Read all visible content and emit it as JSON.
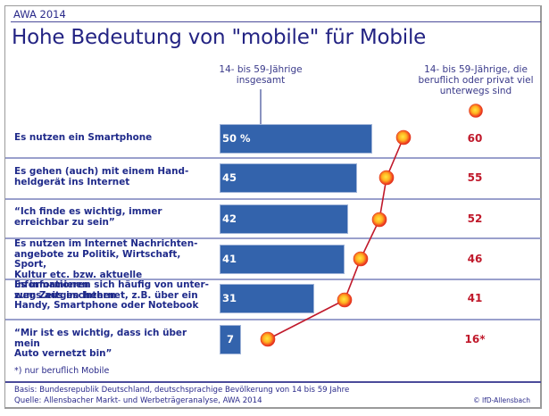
{
  "header": {
    "survey_label": "AWA 2014",
    "title": "Hohe Bedeutung von \"mobile\" für Mobile"
  },
  "chart_data": {
    "type": "bar",
    "title": "Hohe Bedeutung von \"mobile\" für Mobile",
    "unit": "%",
    "categories": [
      "Es nutzen ein Smartphone",
      "Es gehen (auch) mit einem Handheldgerät ins Internet",
      "\"Ich finde es wichtig, immer erreichbar zu sein\"",
      "Es nutzen im Internet Nachrichtenangebote zu Politik, Wirtschaft, Sport, Kultur etc. bzw. aktuelle Informationen zum Zeitgeschehen",
      "Es informieren sich häufig von unterwegs aus im Internet, z.B. über ein Handy, Smartphone oder Notebook",
      "\"Mir ist es wichtig, dass ich über mein Auto vernetzt bin\""
    ],
    "category_lines": [
      [
        "Es nutzen ein Smartphone"
      ],
      [
        "Es gehen (auch) mit einem Hand-",
        "heldgerät ins Internet"
      ],
      [
        "“Ich finde es wichtig, immer",
        "erreichbar zu sein”"
      ],
      [
        "Es nutzen im Internet Nachrichten-",
        "angebote zu Politik, Wirtschaft, Sport,",
        "Kultur etc. bzw. aktuelle Informationen",
        "zum Zeitgeschehen"
      ],
      [
        "Es informieren sich häufig von unter-",
        "wegs aus im Internet, z.B. über ein",
        "Handy, Smartphone oder Notebook"
      ],
      [
        "“Mir ist es wichtig, dass ich über mein",
        "Auto vernetzt bin”"
      ]
    ],
    "series": [
      {
        "name": "14- bis 59-Jährige insgesamt",
        "mark": "bar",
        "color": "#3363ac",
        "values": [
          50,
          45,
          42,
          41,
          31,
          7
        ],
        "labels": [
          "50 %",
          "45",
          "42",
          "41",
          "31",
          "7"
        ]
      },
      {
        "name": "14- bis 59-Jährige, die beruflich oder privat viel unterwegs sind",
        "mark": "line-dots",
        "color": "#c0192b",
        "values": [
          60,
          55,
          52,
          46,
          41,
          16
        ],
        "labels": [
          "60",
          "55",
          "52",
          "46",
          "41",
          "16*"
        ]
      }
    ],
    "legend": {
      "left_header_lines": [
        "14- bis 59-Jährige",
        "insgesamt"
      ],
      "right_header_lines": [
        "14- bis 59-Jährige, die",
        "beruflich oder privat viel",
        "unterwegs sind"
      ]
    },
    "footnote": "*) nur beruflich Mobile",
    "xlabel": "",
    "ylabel": ""
  },
  "footer": {
    "basis": "Basis: Bundesrepublik Deutschland, deutschsprachige Bevölkerung von 14 bis 59 Jahre",
    "source": "Quelle: Allensbacher Markt- und Werbeträgeranalyse, AWA 2014",
    "copyright": "© IfD-Allensbach"
  }
}
